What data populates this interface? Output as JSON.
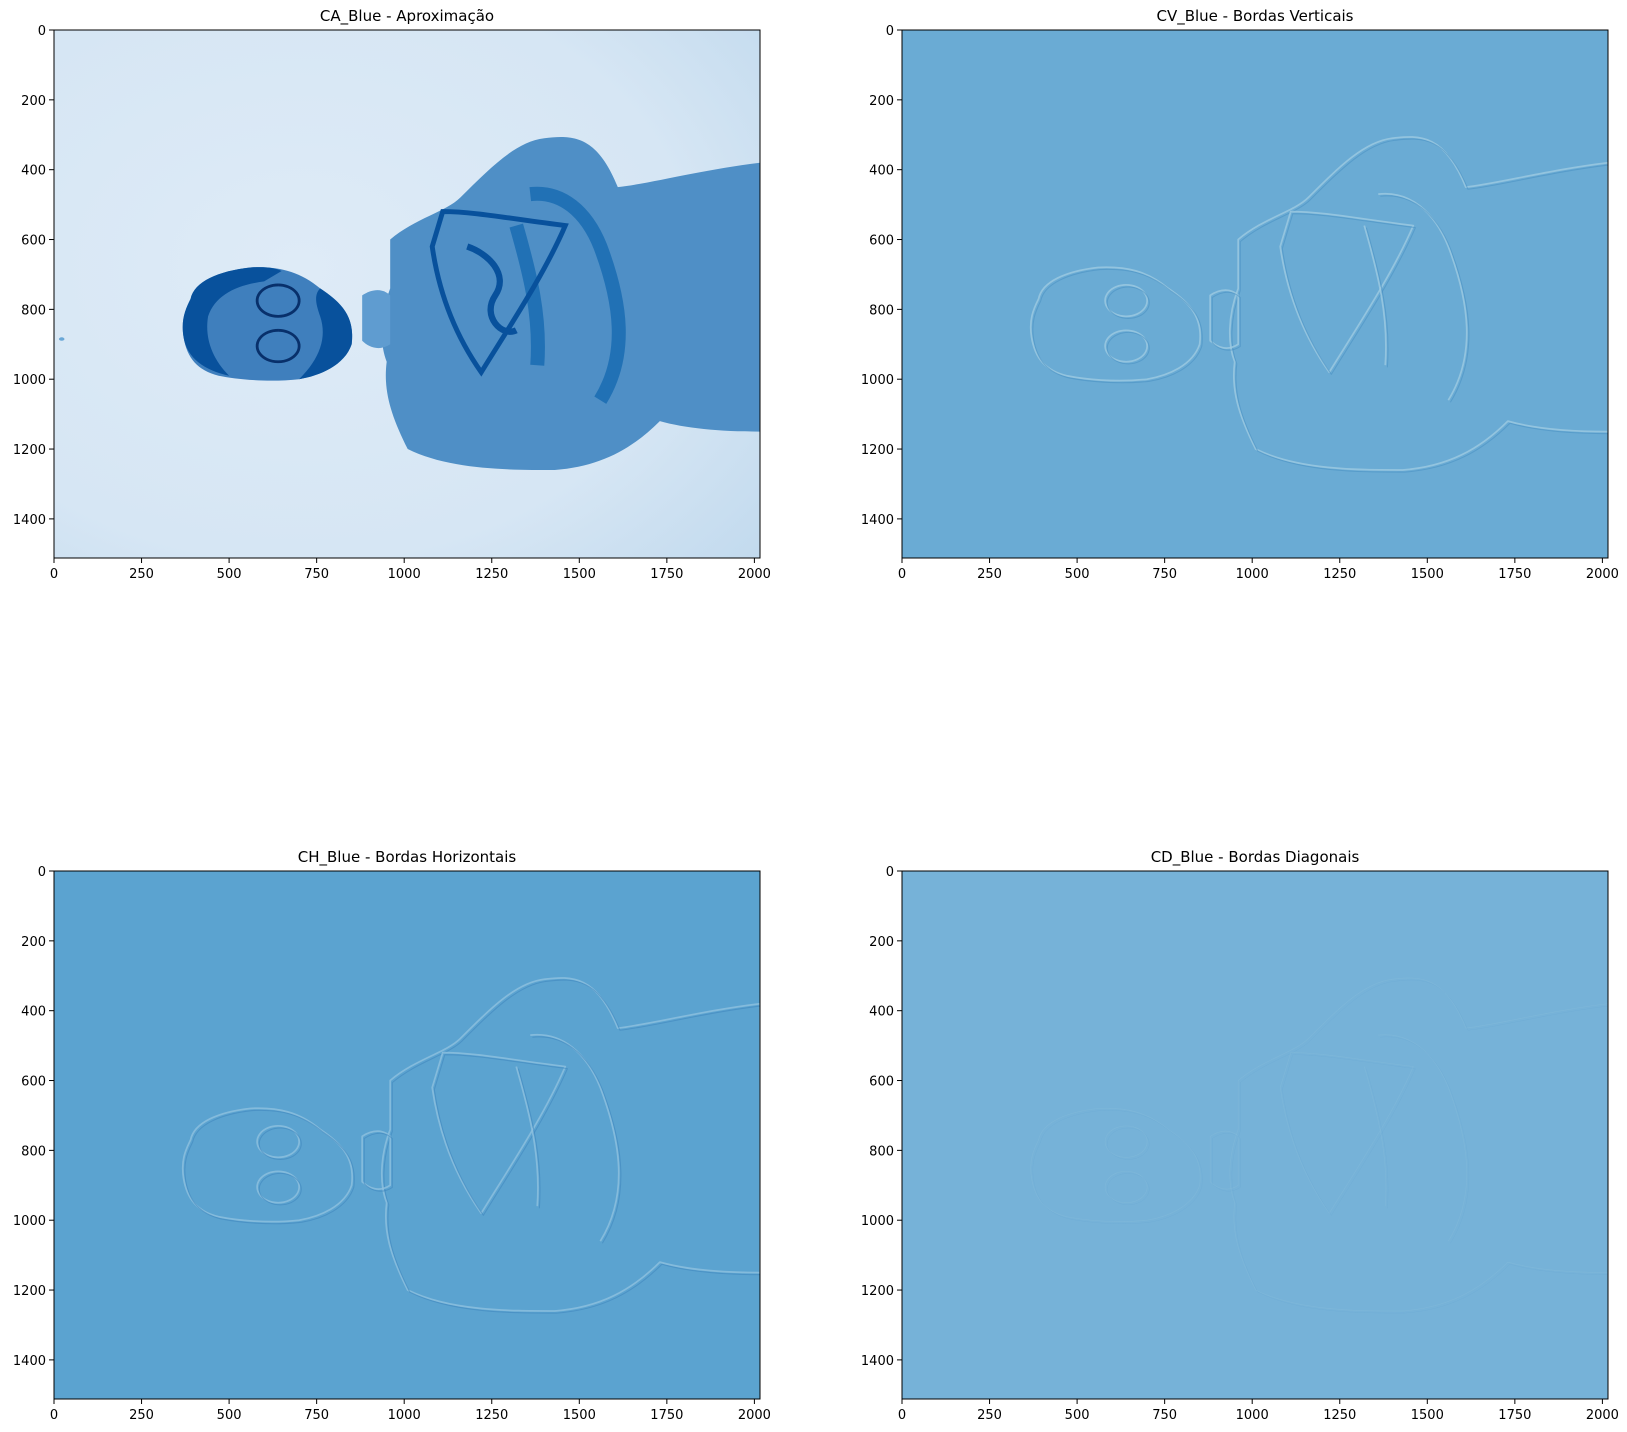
{
  "chart_data": [
    {
      "type": "heatmap",
      "title": "CA_Blue - Aproximação",
      "colormap": "Blues",
      "xlim": [
        0,
        2016
      ],
      "ylim": [
        1512,
        0
      ],
      "xticks": [
        0,
        250,
        500,
        750,
        1000,
        1250,
        1500,
        1750,
        2000
      ],
      "yticks": [
        0,
        200,
        400,
        600,
        800,
        1000,
        1200,
        1400
      ],
      "content": "approximation",
      "colors": {
        "background_top_left": "#c6dcef",
        "background_mid": "#dbe9f6",
        "subject": "#2171b5",
        "subject_dark": "#08519c"
      }
    },
    {
      "type": "heatmap",
      "title": "CV_Blue - Bordas Verticais",
      "colormap": "Blues",
      "xlim": [
        0,
        2016
      ],
      "ylim": [
        1512,
        0
      ],
      "xticks": [
        0,
        250,
        500,
        750,
        1000,
        1250,
        1500,
        1750,
        2000
      ],
      "yticks": [
        0,
        200,
        400,
        600,
        800,
        1000,
        1200,
        1400
      ],
      "content": "vertical-edges",
      "colors": {
        "background": "#6aabd4",
        "edge_light": "#9ecae1",
        "edge_dark": "#4a90c2"
      }
    },
    {
      "type": "heatmap",
      "title": "CH_Blue - Bordas Horizontais",
      "colormap": "Blues",
      "xlim": [
        0,
        2016
      ],
      "ylim": [
        1512,
        0
      ],
      "xticks": [
        0,
        250,
        500,
        750,
        1000,
        1250,
        1500,
        1750,
        2000
      ],
      "yticks": [
        0,
        200,
        400,
        600,
        800,
        1000,
        1200,
        1400
      ],
      "content": "horizontal-edges",
      "colors": {
        "background": "#5ba3d0",
        "edge_light": "#8fc1de",
        "edge_dark": "#3f86bd"
      }
    },
    {
      "type": "heatmap",
      "title": "CD_Blue - Bordas Diagonais",
      "colormap": "Blues",
      "xlim": [
        0,
        2016
      ],
      "ylim": [
        1512,
        0
      ],
      "xticks": [
        0,
        250,
        500,
        750,
        1000,
        1250,
        1500,
        1750,
        2000
      ],
      "yticks": [
        0,
        200,
        400,
        600,
        800,
        1000,
        1200,
        1400
      ],
      "content": "diagonal-edges",
      "colors": {
        "background": "#76b2d8",
        "edge_light": "#8cc0de",
        "edge_dark": "#5b9ccb"
      }
    }
  ]
}
